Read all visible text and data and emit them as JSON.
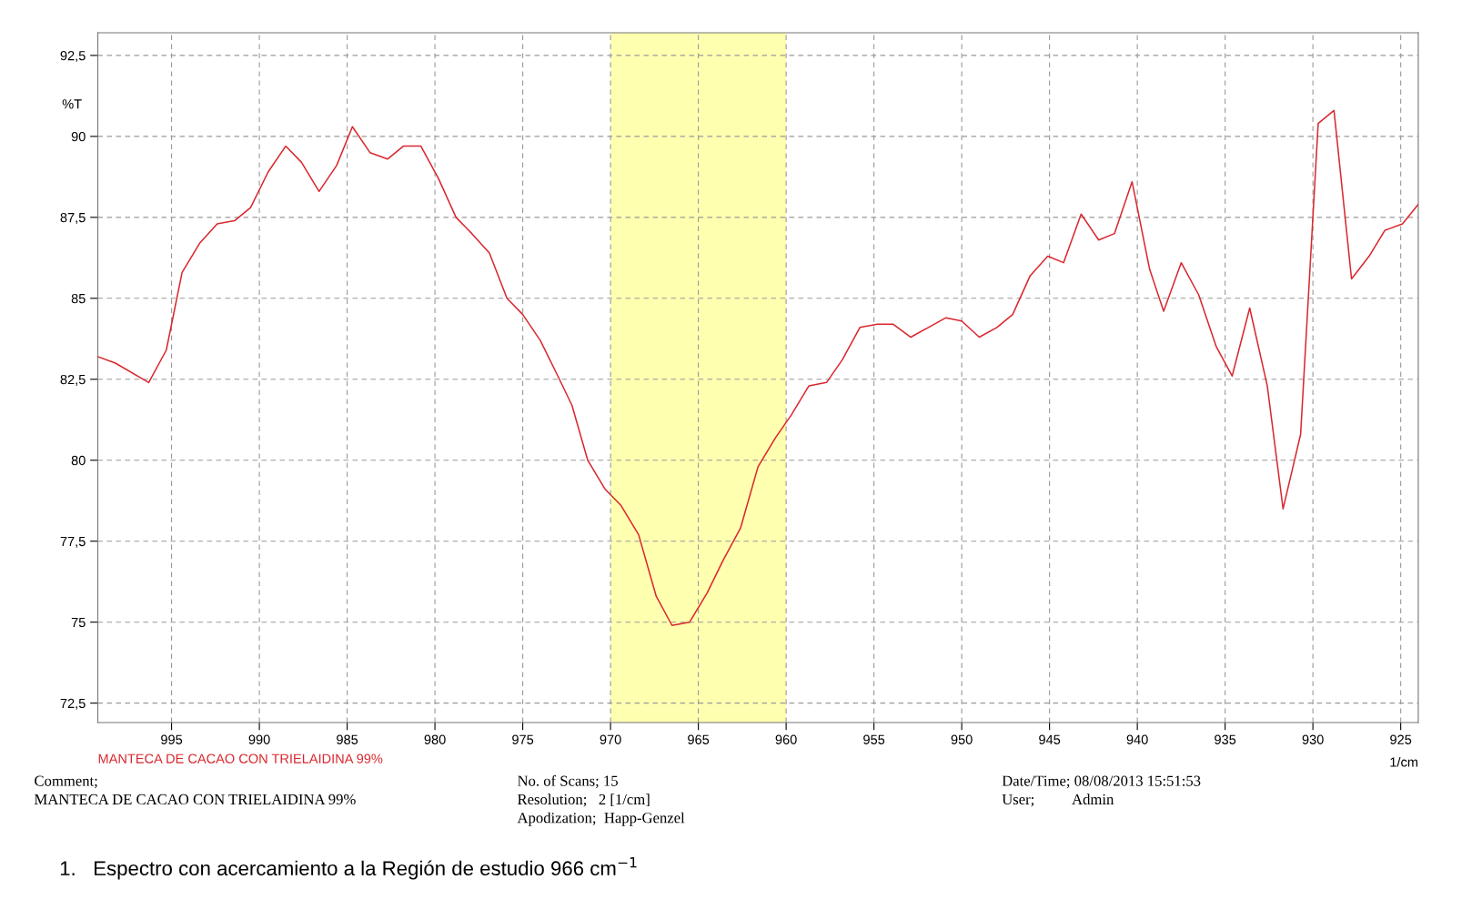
{
  "chart_data": {
    "type": "line",
    "ylabel": "%T",
    "xlabel": "1/cm",
    "x": [
      999.2,
      998.2,
      996.3,
      995.3,
      994.4,
      993.4,
      992.4,
      991.4,
      990.5,
      989.5,
      988.5,
      987.6,
      986.6,
      985.6,
      984.7,
      983.7,
      982.7,
      981.8,
      980.8,
      979.8,
      978.8,
      977.9,
      976.9,
      975.9,
      975.0,
      974.0,
      973.0,
      972.2,
      971.3,
      970.3,
      969.4,
      968.4,
      967.4,
      966.5,
      965.5,
      964.5,
      963.6,
      962.6,
      961.6,
      960.6,
      959.7,
      958.7,
      957.7,
      956.8,
      955.8,
      954.8,
      953.9,
      952.9,
      951.9,
      950.9,
      950.0,
      949.0,
      948.0,
      947.1,
      946.1,
      945.1,
      944.2,
      943.2,
      942.2,
      941.3,
      940.3,
      939.3,
      938.5,
      937.5,
      936.5,
      935.5,
      934.6,
      933.6,
      932.6,
      931.7,
      930.7,
      929.7,
      928.8,
      927.8,
      926.8,
      925.9,
      924.9,
      924.0
    ],
    "series": [
      {
        "name": "MANTECA DE CACAO CON TRIELAIDINA 99%",
        "color": "#d9272e",
        "values": [
          83.2,
          83.0,
          82.4,
          83.4,
          85.8,
          86.7,
          87.3,
          87.4,
          87.8,
          88.9,
          89.7,
          89.2,
          88.3,
          89.1,
          90.3,
          89.5,
          89.3,
          89.7,
          89.7,
          88.7,
          87.5,
          87.0,
          86.4,
          85.0,
          84.5,
          83.7,
          82.6,
          81.7,
          80.0,
          79.1,
          78.6,
          77.7,
          75.8,
          74.9,
          75.0,
          75.9,
          76.9,
          77.9,
          79.8,
          80.7,
          81.4,
          82.3,
          82.4,
          83.1,
          84.1,
          84.2,
          84.2,
          83.8,
          84.1,
          84.4,
          84.3,
          83.8,
          84.1,
          84.5,
          85.7,
          86.3,
          86.1,
          87.6,
          86.8,
          87.0,
          88.6,
          85.9,
          84.6,
          86.1,
          85.1,
          83.5,
          82.6,
          84.7,
          82.3,
          78.5,
          80.8,
          90.4,
          90.8,
          85.6,
          86.3,
          87.1,
          87.3,
          87.9
        ]
      }
    ],
    "xlim": [
      999.2,
      924.0
    ],
    "ylim": [
      71.9,
      93.2
    ],
    "xticks": [
      995,
      990,
      985,
      980,
      975,
      970,
      965,
      960,
      955,
      950,
      945,
      940,
      935,
      930,
      925
    ],
    "yticks": [
      {
        "value": 72.5,
        "label": "72,5"
      },
      75,
      {
        "value": 77.5,
        "label": "77,5"
      },
      80,
      {
        "value": 82.5,
        "label": "82,5"
      },
      85,
      {
        "value": 87.5,
        "label": "87,5"
      },
      90,
      {
        "value": 92.5,
        "label": "92,5"
      }
    ],
    "bands": [
      {
        "axis": "x",
        "from": 970,
        "to": 960,
        "color": "#ffffb0"
      }
    ],
    "grid": true,
    "legend": false,
    "line_style": "solid",
    "marker": "none",
    "annotations": [
      "Comment;\nMANTECA DE CACAO CON TRIELAIDINA 99%",
      "No. of Scans; 15\nResolution;   2 [1/cm]\nApodization;  Happ-Genzel",
      "Date/Time; 08/08/2013 15:51:53\nUser;          Admin",
      "1.   Espectro con acercamiento a la Región de estudio 966 cm$^{−1}$"
    ]
  }
}
